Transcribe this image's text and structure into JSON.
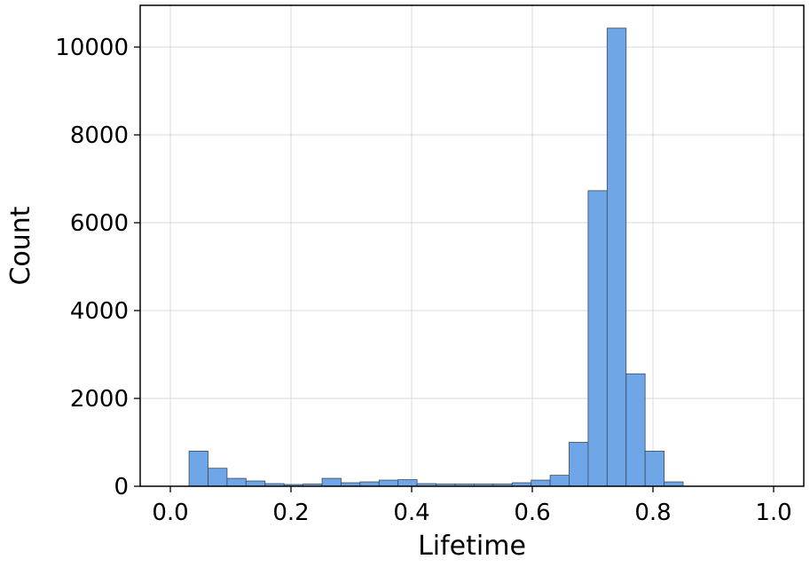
{
  "chart_data": {
    "type": "bar",
    "subtype": "histogram",
    "title": "",
    "xlabel": "Lifetime",
    "ylabel": "Count",
    "xlim": [
      -0.05,
      1.05
    ],
    "ylim": [
      0,
      10950
    ],
    "xticks": [
      0.0,
      0.2,
      0.4,
      0.6,
      0.8,
      1.0
    ],
    "xtick_labels": [
      "0.0",
      "0.2",
      "0.4",
      "0.6",
      "0.8",
      "1.0"
    ],
    "yticks": [
      0,
      2000,
      4000,
      6000,
      8000,
      10000
    ],
    "ytick_labels": [
      "0",
      "2000",
      "4000",
      "6000",
      "8000",
      "10000"
    ],
    "grid": true,
    "bar_color": "#6ea6e8",
    "bar_edge_color": "#3d4a5c",
    "bins": [
      {
        "x0": 0.031,
        "x1": 0.0625,
        "count": 800
      },
      {
        "x0": 0.0625,
        "x1": 0.094,
        "count": 410
      },
      {
        "x0": 0.094,
        "x1": 0.1255,
        "count": 180
      },
      {
        "x0": 0.1255,
        "x1": 0.157,
        "count": 120
      },
      {
        "x0": 0.157,
        "x1": 0.1885,
        "count": 60
      },
      {
        "x0": 0.1885,
        "x1": 0.22,
        "count": 40
      },
      {
        "x0": 0.22,
        "x1": 0.2515,
        "count": 50
      },
      {
        "x0": 0.2515,
        "x1": 0.283,
        "count": 180
      },
      {
        "x0": 0.283,
        "x1": 0.3145,
        "count": 80
      },
      {
        "x0": 0.3145,
        "x1": 0.346,
        "count": 100
      },
      {
        "x0": 0.346,
        "x1": 0.3775,
        "count": 140
      },
      {
        "x0": 0.3775,
        "x1": 0.409,
        "count": 150
      },
      {
        "x0": 0.409,
        "x1": 0.4405,
        "count": 60
      },
      {
        "x0": 0.4405,
        "x1": 0.472,
        "count": 50
      },
      {
        "x0": 0.472,
        "x1": 0.5035,
        "count": 50
      },
      {
        "x0": 0.5035,
        "x1": 0.535,
        "count": 50
      },
      {
        "x0": 0.535,
        "x1": 0.5665,
        "count": 50
      },
      {
        "x0": 0.5665,
        "x1": 0.598,
        "count": 80
      },
      {
        "x0": 0.598,
        "x1": 0.6295,
        "count": 140
      },
      {
        "x0": 0.6295,
        "x1": 0.661,
        "count": 250
      },
      {
        "x0": 0.661,
        "x1": 0.6925,
        "count": 1000
      },
      {
        "x0": 0.6925,
        "x1": 0.724,
        "count": 6730
      },
      {
        "x0": 0.724,
        "x1": 0.7555,
        "count": 10430
      },
      {
        "x0": 0.7555,
        "x1": 0.787,
        "count": 2560
      },
      {
        "x0": 0.787,
        "x1": 0.8185,
        "count": 800
      },
      {
        "x0": 0.8185,
        "x1": 0.85,
        "count": 100
      }
    ]
  }
}
